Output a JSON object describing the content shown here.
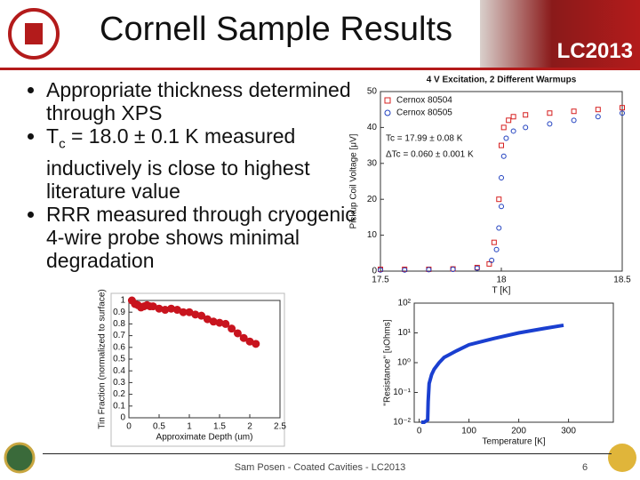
{
  "header": {
    "title": "Cornell Sample Results",
    "conference": "LC2013"
  },
  "bullets": [
    {
      "text": "Appropriate thickness determined through XPS"
    },
    {
      "symbol": "T",
      "subscript": "c",
      "text": "= 18.0 ± 0.1 K measured inductively is close to highest literature value"
    },
    {
      "text": "RRR measured through cryogenic 4-wire probe shows minimal degradation"
    }
  ],
  "footer": {
    "text": "Sam Posen - Coated Cavities - LC2013",
    "page": 6
  },
  "chart_data": [
    {
      "type": "scatter",
      "title": "4 V Excitation, 2 Different Warmups",
      "x_label": "T [K]",
      "y_label": "Pickup Coil Voltage [μV]",
      "xlim": [
        17.5,
        18.5
      ],
      "xticks": [
        17.5,
        18,
        18.5
      ],
      "ylim": [
        0,
        50
      ],
      "yticks": [
        0,
        10,
        20,
        30,
        40,
        50
      ],
      "annotations": [
        "Tc = 17.99 ± 0.08 K",
        "ΔTc = 0.060 ± 0.001 K"
      ],
      "series": [
        {
          "name": "Cernox 80504",
          "color": "#d62020",
          "marker": "square",
          "x": [
            17.5,
            17.6,
            17.7,
            17.8,
            17.9,
            17.95,
            17.97,
            17.99,
            18.0,
            18.01,
            18.03,
            18.05,
            18.1,
            18.2,
            18.3,
            18.4,
            18.5
          ],
          "values": [
            0.5,
            0.5,
            0.5,
            0.6,
            1,
            2,
            8,
            20,
            35,
            40,
            42,
            43,
            43.5,
            44,
            44.5,
            45,
            45.5
          ]
        },
        {
          "name": "Cernox 80505",
          "color": "#1f3fbf",
          "marker": "circle",
          "x": [
            17.5,
            17.6,
            17.7,
            17.8,
            17.9,
            17.96,
            17.98,
            17.99,
            18.0,
            18.0,
            18.01,
            18.02,
            18.05,
            18.1,
            18.2,
            18.3,
            18.4,
            18.5
          ],
          "values": [
            0.3,
            0.3,
            0.4,
            0.5,
            0.8,
            3,
            6,
            12,
            18,
            26,
            32,
            37,
            39,
            40,
            41,
            42,
            43,
            44
          ]
        }
      ]
    },
    {
      "type": "scatter",
      "x_label": "Approximate Depth (um)",
      "y_label": "Tin Fraction (normalized to surface)",
      "xlim": [
        0,
        2.5
      ],
      "xticks": [
        0,
        0.5,
        1,
        1.5,
        2,
        2.5
      ],
      "ylim": [
        0,
        1
      ],
      "yticks": [
        0,
        0.1,
        0.2,
        0.3,
        0.4,
        0.5,
        0.6,
        0.7,
        0.8,
        0.9,
        1
      ],
      "series": [
        {
          "color": "#c8141e",
          "marker": "circle",
          "x": [
            0.05,
            0.1,
            0.15,
            0.2,
            0.25,
            0.3,
            0.35,
            0.4,
            0.5,
            0.6,
            0.7,
            0.8,
            0.9,
            1.0,
            1.1,
            1.2,
            1.3,
            1.4,
            1.5,
            1.6,
            1.7,
            1.8,
            1.9,
            2.0,
            2.1
          ],
          "values": [
            1,
            0.97,
            0.96,
            0.94,
            0.95,
            0.96,
            0.95,
            0.95,
            0.93,
            0.92,
            0.93,
            0.92,
            0.9,
            0.9,
            0.88,
            0.87,
            0.84,
            0.82,
            0.81,
            0.8,
            0.76,
            0.72,
            0.68,
            0.65,
            0.63
          ]
        }
      ]
    },
    {
      "type": "line",
      "x_label": "Temperature [K]",
      "y_label": "\"Resistance\" [uOhms]",
      "log_y": true,
      "xlim": [
        -10,
        390
      ],
      "xticks": [
        0,
        100,
        200,
        300
      ],
      "ylim": [
        0.01,
        100
      ],
      "yticks": [
        {
          "value": 0.01,
          "label": "10⁻²"
        },
        {
          "value": 0.1,
          "label": "10⁻¹"
        },
        {
          "value": 1,
          "label": "10⁰"
        },
        {
          "value": 10,
          "label": "10¹"
        },
        {
          "value": 100,
          "label": "10²"
        }
      ],
      "series": [
        {
          "color": "#1a3fd0",
          "x": [
            4,
            10,
            17,
            18,
            19,
            20,
            25,
            30,
            40,
            50,
            75,
            100,
            150,
            200,
            250,
            290
          ],
          "values": [
            0.01,
            0.01,
            0.012,
            0.05,
            0.1,
            0.2,
            0.4,
            0.6,
            1,
            1.5,
            2.5,
            4,
            6.5,
            10,
            14,
            18
          ]
        }
      ]
    }
  ]
}
